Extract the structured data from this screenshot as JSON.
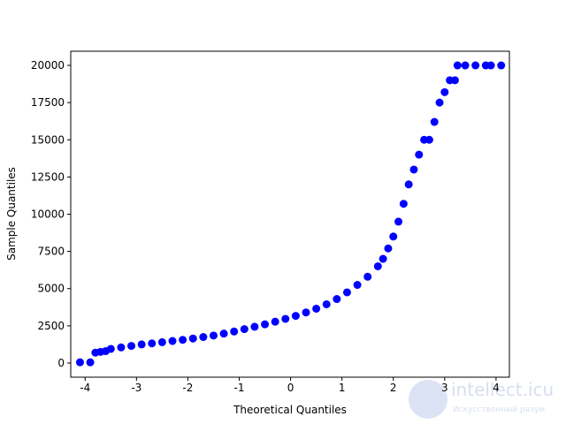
{
  "chart_data": {
    "type": "scatter",
    "xlabel": "Theoretical Quantiles",
    "ylabel": "Sample Quantiles",
    "color": "#0000ff",
    "x": [
      -4.1,
      -3.9,
      -3.8,
      -3.7,
      -3.6,
      -3.5,
      -3.3,
      -3.1,
      -2.9,
      -2.7,
      -2.5,
      -2.3,
      -2.1,
      -1.9,
      -1.7,
      -1.5,
      -1.3,
      -1.1,
      -0.9,
      -0.7,
      -0.5,
      -0.3,
      -0.1,
      0.1,
      0.3,
      0.5,
      0.7,
      0.9,
      1.1,
      1.3,
      1.5,
      1.7,
      1.8,
      1.9,
      2.0,
      2.1,
      2.2,
      2.3,
      2.4,
      2.5,
      2.6,
      2.7,
      2.8,
      2.9,
      3.0,
      3.1,
      3.2,
      3.25,
      3.4,
      3.6,
      3.8,
      3.9,
      4.1
    ],
    "values": [
      50,
      50,
      700,
      750,
      800,
      950,
      1050,
      1150,
      1250,
      1320,
      1400,
      1480,
      1560,
      1650,
      1750,
      1850,
      1980,
      2120,
      2280,
      2440,
      2600,
      2780,
      2970,
      3170,
      3400,
      3650,
      3950,
      4300,
      4750,
      5250,
      5800,
      6500,
      7000,
      7700,
      8500,
      9500,
      10700,
      12000,
      13000,
      14000,
      15000,
      15000,
      16200,
      17500,
      18200,
      19000,
      19000,
      20000,
      20000,
      20000,
      20000,
      20000,
      20000
    ],
    "xlim": [
      -4.28,
      4.26
    ],
    "ylim": [
      -950,
      20950
    ],
    "xticks": [
      -4,
      -3,
      -2,
      -1,
      0,
      1,
      2,
      3,
      4
    ],
    "yticks": [
      0,
      2500,
      5000,
      7500,
      10000,
      12500,
      15000,
      17500,
      20000
    ]
  },
  "watermark": {
    "title": "intellect.icu",
    "subtitle": "Искусственный разум"
  }
}
